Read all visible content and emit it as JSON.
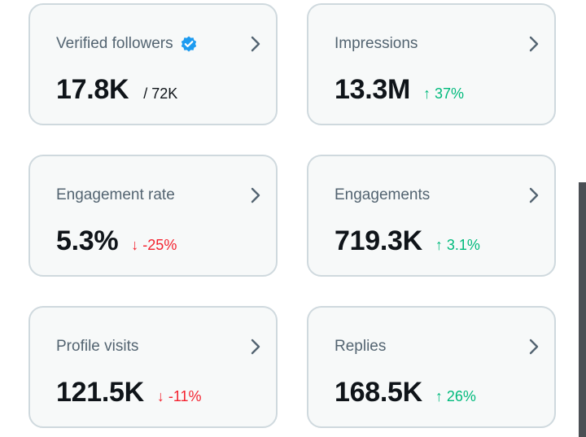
{
  "accent_color": "#1d9bf0",
  "positive_color": "#00ba7c",
  "negative_color": "#f4212e",
  "metrics": [
    {
      "label": "Verified followers",
      "value": "17.8K",
      "sub": "/ 72K",
      "verified_icon": "verified-badge-icon"
    },
    {
      "label": "Impressions",
      "value": "13.3M",
      "delta_arrow": "↑",
      "delta": "37%",
      "trend": "up"
    },
    {
      "label": "Engagement rate",
      "value": "5.3%",
      "delta_arrow": "↓",
      "delta": "-25%",
      "trend": "down"
    },
    {
      "label": "Engagements",
      "value": "719.3K",
      "delta_arrow": "↑",
      "delta": "3.1%",
      "trend": "up"
    },
    {
      "label": "Profile visits",
      "value": "121.5K",
      "delta_arrow": "↓",
      "delta": "-11%",
      "trend": "down"
    },
    {
      "label": "Replies",
      "value": "168.5K",
      "delta_arrow": "↑",
      "delta": "26%",
      "trend": "up"
    }
  ]
}
